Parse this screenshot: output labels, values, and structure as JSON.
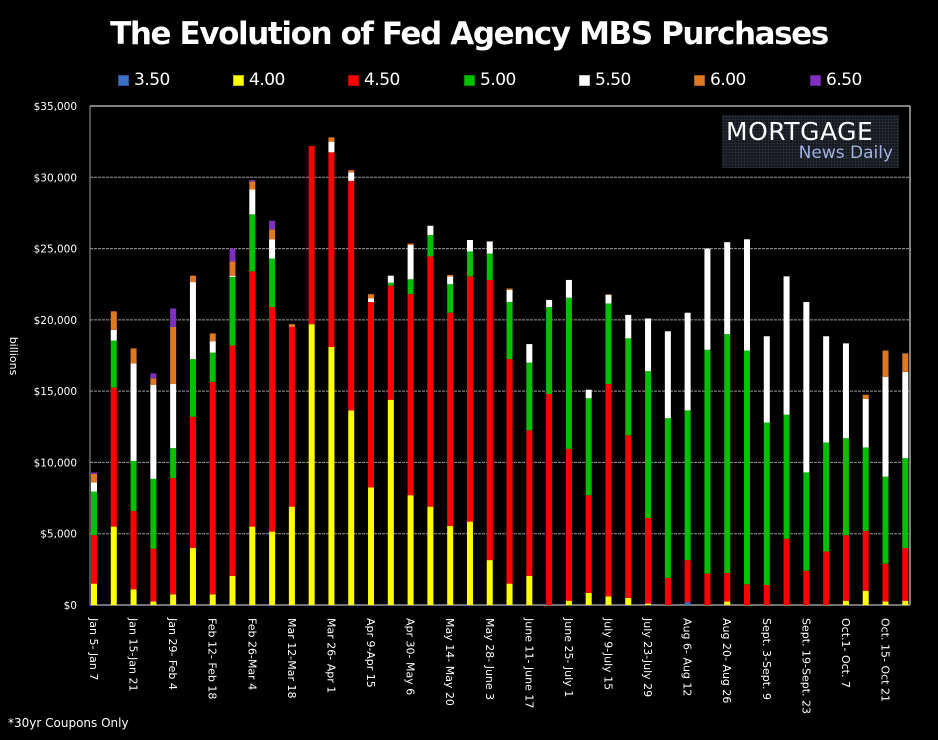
{
  "chart_data": {
    "type": "bar",
    "stacked": true,
    "title": "The Evolution of Fed Agency MBS Purchases",
    "xlabel": "",
    "ylabel": "billions",
    "ylim": [
      0,
      35000
    ],
    "yticks": [
      0,
      5000,
      10000,
      15000,
      20000,
      25000,
      30000,
      35000
    ],
    "ytick_labels": [
      "$0",
      "$5,000",
      "$10,000",
      "$15,000",
      "$20,000",
      "$25,000",
      "$30,000",
      "$35,000"
    ],
    "grid": true,
    "legend_position": "top",
    "x_labels_shown": [
      "Jan 5- Jan 7",
      "Jan 15-Jan 21",
      "Jan 29- Feb 4",
      "Feb 12- Feb 18",
      "Feb 26-Mar 4",
      "Mar 12-Mar 18",
      "Mar 26- Apr 1",
      "Apr 9-Apr 15",
      "Apr 30- May 6",
      "May 14- May 20",
      "May 28- June 3",
      "June 11- June 17",
      "June 25- July 1",
      "July 9-July 15",
      "July 23-July 29",
      "Aug 6- Aug 12",
      "Aug 20- Aug 26",
      "Sept. 3-Sept. 9",
      "Sept. 19-Sept. 23",
      "Oct.1- Oct. 7",
      "Oct. 15- Oct 21"
    ],
    "x_label_every": 2,
    "bar_count": 42,
    "series": [
      {
        "name": "3.50",
        "color": "#3a6fc4",
        "values": [
          0,
          0,
          0,
          0,
          0,
          0,
          0,
          0,
          0,
          0,
          0,
          0,
          0,
          0,
          0,
          0,
          0,
          0,
          0,
          0,
          0,
          0,
          0,
          0,
          0,
          0,
          0,
          0,
          0,
          0,
          200,
          0,
          0,
          0,
          0,
          0,
          0,
          0,
          0,
          0,
          0,
          0
        ]
      },
      {
        "name": "4.00",
        "color": "#ffff00",
        "values": [
          1500,
          5500,
          1100,
          250,
          750,
          4000,
          750,
          2050,
          5500,
          5150,
          6900,
          19700,
          18100,
          13650,
          8250,
          14400,
          7700,
          6900,
          5550,
          5850,
          3150,
          1500,
          2050,
          0,
          300,
          850,
          600,
          500,
          100,
          0,
          0,
          0,
          250,
          0,
          0,
          0,
          0,
          0,
          300,
          1000,
          250,
          300
        ]
      },
      {
        "name": "4.50",
        "color": "#ff0000",
        "values": [
          3400,
          9750,
          5500,
          3700,
          8150,
          9200,
          14900,
          16150,
          17900,
          15750,
          12600,
          12500,
          13650,
          16100,
          13000,
          8000,
          14100,
          17550,
          14950,
          17200,
          19650,
          15750,
          10200,
          14800,
          10650,
          6850,
          14900,
          11400,
          6000,
          1900,
          2950,
          2200,
          2000,
          1450,
          1400,
          4650,
          2400,
          3750,
          4600,
          4200,
          2650,
          3700
        ]
      },
      {
        "name": "5.00",
        "color": "#00c000",
        "values": [
          3050,
          3300,
          3500,
          4900,
          2100,
          4050,
          2050,
          4800,
          4000,
          3400,
          0,
          0,
          0,
          0,
          0,
          200,
          1050,
          1500,
          2000,
          1750,
          1850,
          4000,
          4750,
          6100,
          10600,
          6800,
          5650,
          6800,
          10300,
          11200,
          10500,
          15700,
          16750,
          16400,
          11400,
          8700,
          6900,
          7650,
          6800,
          5850,
          6100,
          6300
        ]
      },
      {
        "name": "5.50",
        "color": "#ffffff",
        "values": [
          650,
          750,
          6850,
          6600,
          4500,
          5400,
          800,
          100,
          1750,
          1350,
          0,
          0,
          750,
          600,
          250,
          500,
          2400,
          650,
          550,
          800,
          850,
          850,
          1300,
          500,
          1250,
          600,
          600,
          1650,
          3700,
          6100,
          6850,
          7100,
          6450,
          7800,
          6050,
          9700,
          11950,
          7450,
          6650,
          3400,
          7000,
          6050
        ]
      },
      {
        "name": "6.00",
        "color": "#e07820",
        "values": [
          600,
          1300,
          1050,
          450,
          4000,
          450,
          550,
          1000,
          550,
          700,
          200,
          0,
          300,
          150,
          300,
          0,
          100,
          0,
          100,
          0,
          0,
          100,
          0,
          0,
          0,
          0,
          50,
          0,
          0,
          0,
          0,
          0,
          0,
          0,
          0,
          0,
          0,
          0,
          0,
          300,
          1850,
          1300
        ]
      },
      {
        "name": "6.50",
        "color": "#8030c0",
        "values": [
          100,
          0,
          0,
          350,
          1300,
          0,
          0,
          900,
          100,
          600,
          0,
          0,
          0,
          0,
          0,
          0,
          0,
          0,
          0,
          0,
          0,
          0,
          0,
          0,
          0,
          0,
          0,
          0,
          0,
          0,
          0,
          0,
          0,
          0,
          0,
          0,
          0,
          0,
          0,
          0,
          0,
          0
        ]
      }
    ]
  },
  "logo": {
    "top": "MORTGAGE",
    "bottom": "News Daily"
  },
  "footnote": "*30yr Coupons Only"
}
